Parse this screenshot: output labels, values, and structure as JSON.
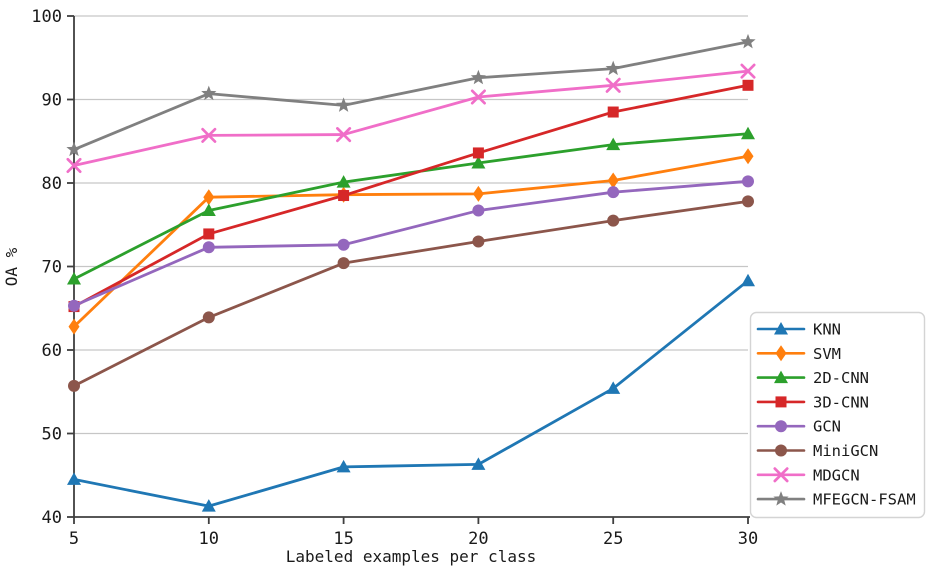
{
  "chart_data": {
    "type": "line",
    "title": "",
    "xlabel": "Labeled examples per class",
    "ylabel": "OA %",
    "x": [
      5,
      10,
      15,
      20,
      25,
      30
    ],
    "xlim": [
      5,
      30
    ],
    "ylim": [
      40,
      100
    ],
    "xticks": [
      5,
      10,
      15,
      20,
      25,
      30
    ],
    "yticks": [
      40,
      50,
      60,
      70,
      80,
      90,
      100
    ],
    "grid": "horizontal",
    "legend_position": "outside-right-bottom",
    "series": [
      {
        "name": "KNN",
        "color": "#1f77b4",
        "marker": "triangle",
        "values": [
          44.5,
          41.3,
          46.0,
          46.3,
          55.4,
          68.3
        ]
      },
      {
        "name": "SVM",
        "color": "#ff7f0e",
        "marker": "diamond",
        "values": [
          62.8,
          78.3,
          78.6,
          78.7,
          80.3,
          83.2
        ]
      },
      {
        "name": "2D-CNN",
        "color": "#2ca02c",
        "marker": "triangle",
        "values": [
          68.5,
          76.7,
          80.1,
          82.4,
          84.6,
          85.9
        ]
      },
      {
        "name": "3D-CNN",
        "color": "#d62728",
        "marker": "square",
        "values": [
          65.2,
          73.9,
          78.5,
          83.6,
          88.5,
          91.7
        ]
      },
      {
        "name": "GCN",
        "color": "#9467bd",
        "marker": "circle",
        "values": [
          65.3,
          72.3,
          72.6,
          76.7,
          78.9,
          80.2
        ]
      },
      {
        "name": "MiniGCN",
        "color": "#8c564b",
        "marker": "circle",
        "values": [
          55.7,
          63.9,
          70.4,
          73.0,
          75.5,
          77.8
        ]
      },
      {
        "name": "MDGCN",
        "color": "#f06ec8",
        "marker": "x",
        "values": [
          82.1,
          85.7,
          85.8,
          90.3,
          91.7,
          93.4
        ]
      },
      {
        "name": "MFEGCN-FSAM",
        "color": "#808080",
        "marker": "star",
        "values": [
          84.0,
          90.7,
          89.3,
          92.6,
          93.7,
          96.9
        ]
      }
    ]
  },
  "styles": {
    "grid_color": "#c6c6c6",
    "axis_color": "#3f3f3f",
    "text_color": "#1a1a1a",
    "legend_border_color": "#d4d4d4",
    "legend_background": "#ffffff",
    "plot_background": "#ffffff"
  }
}
